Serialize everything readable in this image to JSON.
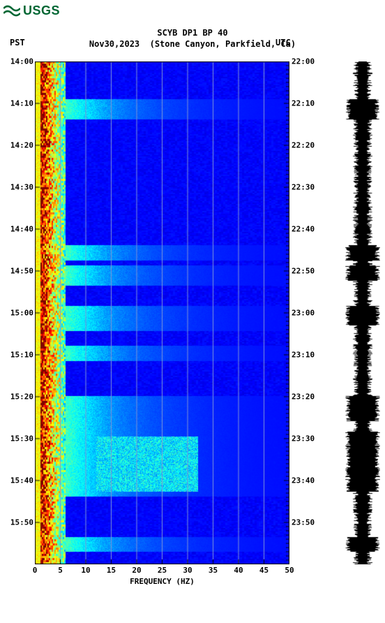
{
  "logo": {
    "text": "USGS"
  },
  "header": {
    "title": "SCYB DP1 BP 40",
    "date": "Nov30,2023",
    "location": "(Stone Canyon, Parkfield, Ca)",
    "left_tz": "PST",
    "right_tz": "UTC"
  },
  "spectrogram": {
    "type": "heatmap",
    "x_axis": {
      "label": "FREQUENCY (HZ)",
      "min": 0,
      "max": 50,
      "ticks": [
        0,
        5,
        10,
        15,
        20,
        25,
        30,
        35,
        40,
        45,
        50
      ],
      "label_fontsize": 11
    },
    "y_left": {
      "label": "PST",
      "ticks": [
        "14:00",
        "14:10",
        "14:20",
        "14:30",
        "14:40",
        "14:50",
        "15:00",
        "15:10",
        "15:20",
        "15:30",
        "15:40",
        "15:50"
      ],
      "tick_positions_pct": [
        0,
        8.33,
        16.67,
        25,
        33.33,
        41.67,
        50,
        58.33,
        66.67,
        75,
        83.33,
        91.67
      ]
    },
    "y_right": {
      "label": "UTC",
      "ticks": [
        "22:00",
        "22:10",
        "22:20",
        "22:30",
        "22:40",
        "22:50",
        "23:00",
        "23:10",
        "23:20",
        "23:30",
        "23:40",
        "23:50"
      ],
      "tick_positions_pct": [
        0,
        8.33,
        16.67,
        25,
        33.33,
        41.67,
        50,
        58.33,
        66.67,
        75,
        83.33,
        91.67
      ]
    },
    "colormap": {
      "stops": [
        {
          "v": 0.0,
          "c": "#00007f"
        },
        {
          "v": 0.15,
          "c": "#0000ff"
        },
        {
          "v": 0.35,
          "c": "#007fff"
        },
        {
          "v": 0.5,
          "c": "#00ffff"
        },
        {
          "v": 0.65,
          "c": "#7fff7f"
        },
        {
          "v": 0.75,
          "c": "#ffff00"
        },
        {
          "v": 0.85,
          "c": "#ff7f00"
        },
        {
          "v": 0.95,
          "c": "#ff0000"
        },
        {
          "v": 1.0,
          "c": "#7f0000"
        }
      ]
    },
    "grid_color": "#7f94d6",
    "background_color": "#0000ff",
    "hot_band_freq_max_hz": 6,
    "burst_rows_pct": [
      9,
      10,
      38,
      42,
      43,
      50,
      51,
      52,
      58,
      68,
      70,
      72,
      75,
      76,
      77,
      78,
      79,
      80,
      81,
      82,
      83,
      84,
      85,
      96
    ],
    "burst_color": "#00d0ff"
  },
  "waveform": {
    "color": "#000000",
    "background": "#ffffff",
    "amplitude_base": 10,
    "spike_rows_pct": [
      9,
      10,
      38,
      42,
      50,
      51,
      68,
      70,
      75,
      76,
      77,
      78,
      79,
      80,
      81,
      82,
      83,
      84,
      96
    ]
  }
}
